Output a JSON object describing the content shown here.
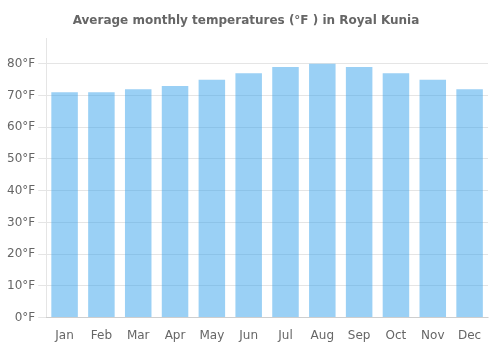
{
  "chart_data": {
    "type": "bar",
    "title": "Average monthly temperatures (°F ) in Royal Kunia",
    "categories": [
      "Jan",
      "Feb",
      "Mar",
      "Apr",
      "May",
      "Jun",
      "Jul",
      "Aug",
      "Sep",
      "Oct",
      "Nov",
      "Dec"
    ],
    "values": [
      71,
      71,
      72,
      73,
      75,
      77,
      79,
      80,
      79,
      77,
      75,
      72
    ],
    "ylim": [
      0,
      88
    ],
    "yticks": [
      {
        "value": 0,
        "label": "0°F"
      },
      {
        "value": 10,
        "label": "10°F"
      },
      {
        "value": 20,
        "label": "20°F"
      },
      {
        "value": 30,
        "label": "30°F"
      },
      {
        "value": 40,
        "label": "40°F"
      },
      {
        "value": 50,
        "label": "50°F"
      },
      {
        "value": 60,
        "label": "60°F"
      },
      {
        "value": 70,
        "label": "70°F"
      },
      {
        "value": 80,
        "label": "80°F"
      }
    ],
    "grid": true
  }
}
